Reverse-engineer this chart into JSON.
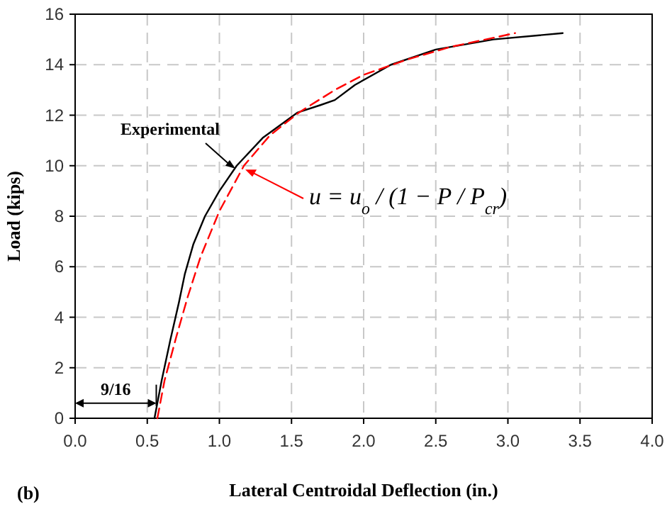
{
  "chart_data": {
    "type": "line",
    "xlabel": "Lateral Centroidal Deflection (in.)",
    "ylabel": "Load (kips)",
    "xlim": [
      0,
      4
    ],
    "ylim": [
      0,
      16
    ],
    "xticks": [
      {
        "value": 0,
        "label": "0.0"
      },
      {
        "value": 0.5,
        "label": "0.5"
      },
      {
        "value": 1,
        "label": "1.0"
      },
      {
        "value": 1.5,
        "label": "1.5"
      },
      {
        "value": 2,
        "label": "2.0"
      },
      {
        "value": 2.5,
        "label": "2.5"
      },
      {
        "value": 3,
        "label": "3.0"
      },
      {
        "value": 3.5,
        "label": "3.5"
      },
      {
        "value": 4,
        "label": "4.0"
      }
    ],
    "yticks": [
      0,
      2,
      4,
      6,
      8,
      10,
      12,
      14,
      16
    ],
    "grid": true,
    "series": [
      {
        "color": "#000000",
        "line_style": "solid",
        "x": [
          0.55,
          0.6,
          0.66,
          0.72,
          0.76,
          0.82,
          0.9,
          1.0,
          1.12,
          1.3,
          1.54,
          1.7,
          1.8,
          1.94,
          2.19,
          2.5,
          2.9,
          3.38
        ],
        "values": [
          0,
          1.5,
          3.1,
          4.6,
          5.7,
          6.9,
          8,
          9,
          10,
          11.1,
          12.1,
          12.4,
          12.6,
          13.2,
          14.0,
          14.6,
          15.0,
          15.25
        ]
      },
      {
        "color": "#ff0000",
        "line_style": "dashed",
        "x": [
          0.57,
          0.62,
          0.7,
          0.78,
          0.87,
          1.0,
          1.17,
          1.35,
          1.55,
          1.8,
          2.0,
          2.3,
          2.6,
          3.05
        ],
        "values": [
          0,
          1.5,
          3.2,
          4.8,
          6.4,
          8.2,
          10,
          11.2,
          12.1,
          13.0,
          13.6,
          14.2,
          14.7,
          15.25
        ]
      }
    ],
    "annotations": [
      {
        "text": "Experimental",
        "x": 1.12,
        "y": 10
      },
      {
        "text": "u = u$_{o}$ / (1 − P / P$_{cr}$)",
        "x": 1.17,
        "y": 9.9
      },
      {
        "text": "9/16",
        "x": 0.5625,
        "y": 0.6
      },
      "(b)"
    ]
  }
}
